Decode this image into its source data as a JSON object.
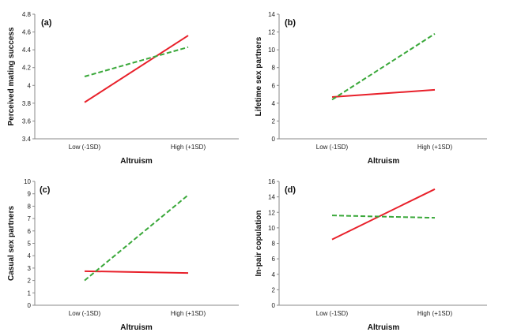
{
  "chart_data": [
    {
      "type": "line",
      "panel_label": "(a)",
      "xlabel": "Altruism",
      "ylabel": "Perceived mating success",
      "categories": [
        "Low (-1SD)",
        "High (+1SD)"
      ],
      "ylim": [
        3.4,
        4.8
      ],
      "yticks": [
        "3.4",
        "3.6",
        "3.8",
        "4",
        "4.2",
        "4.4",
        "4.6",
        "4.8"
      ],
      "series": [
        {
          "style": "solid",
          "color": "#e8202a",
          "values": [
            3.81,
            4.56
          ]
        },
        {
          "style": "dashed",
          "color": "#3aa83a",
          "values": [
            4.1,
            4.43
          ]
        }
      ]
    },
    {
      "type": "line",
      "panel_label": "(b)",
      "xlabel": "Altruism",
      "ylabel": "Lifetime sex partners",
      "categories": [
        "Low (-1SD)",
        "High (+1SD)"
      ],
      "ylim": [
        0,
        14
      ],
      "yticks": [
        "0",
        "2",
        "4",
        "6",
        "8",
        "10",
        "12",
        "14"
      ],
      "series": [
        {
          "style": "solid",
          "color": "#e8202a",
          "values": [
            4.7,
            5.5
          ]
        },
        {
          "style": "dashed",
          "color": "#3aa83a",
          "values": [
            4.4,
            11.8
          ]
        }
      ]
    },
    {
      "type": "line",
      "panel_label": "(c)",
      "xlabel": "Altruism",
      "ylabel": "Casual sex partners",
      "categories": [
        "Low (-1SD)",
        "High (+1SD)"
      ],
      "ylim": [
        0,
        10
      ],
      "yticks": [
        "0",
        "1",
        "2",
        "3",
        "4",
        "5",
        "6",
        "7",
        "8",
        "9",
        "10"
      ],
      "series": [
        {
          "style": "solid",
          "color": "#e8202a",
          "values": [
            2.75,
            2.6
          ]
        },
        {
          "style": "dashed",
          "color": "#3aa83a",
          "values": [
            2.0,
            8.9
          ]
        }
      ]
    },
    {
      "type": "line",
      "panel_label": "(d)",
      "xlabel": "Altruism",
      "ylabel": "In-pair copulation",
      "categories": [
        "Low (-1SD)",
        "High (+1SD)"
      ],
      "ylim": [
        0,
        16
      ],
      "yticks": [
        "0",
        "2",
        "4",
        "6",
        "8",
        "10",
        "12",
        "14",
        "16"
      ],
      "series": [
        {
          "style": "solid",
          "color": "#e8202a",
          "values": [
            8.5,
            15.0
          ]
        },
        {
          "style": "dashed",
          "color": "#3aa83a",
          "values": [
            11.6,
            11.3
          ]
        }
      ]
    }
  ]
}
